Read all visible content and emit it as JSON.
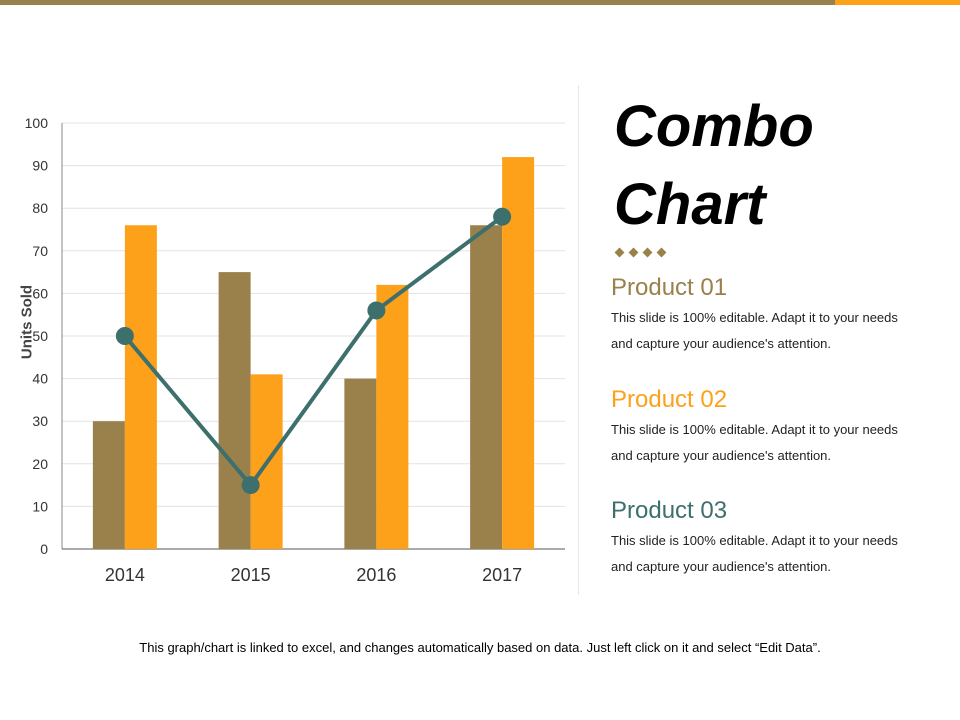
{
  "colors": {
    "product01": "#9a804b",
    "product02": "#fda01a",
    "product03": "#3d706c",
    "topbar": "#9a804b",
    "topbar_accent": "#fda01a"
  },
  "title_lines": [
    "Combo",
    "Chart"
  ],
  "products": [
    {
      "name": "Product 01",
      "text_1": "This slide is 100% editable. Adapt it to your needs",
      "text_2": "and capture your audience's attention."
    },
    {
      "name": "Product 02",
      "text_1": "This slide is 100% editable. Adapt it to your needs",
      "text_2": "and capture your audience's attention."
    },
    {
      "name": "Product 03",
      "text_1": "This slide is 100% editable. Adapt it to your needs",
      "text_2": "and capture your audience's attention."
    }
  ],
  "footer": "This graph/chart is linked to excel, and changes automatically based on data. Just left click on it and select “Edit Data”.",
  "chart_data": {
    "type": "bar",
    "combo": true,
    "categories": [
      "2014",
      "2015",
      "2016",
      "2017"
    ],
    "ylabel": "Units Sold",
    "ylim": [
      0,
      100
    ],
    "yticks": [
      0,
      10,
      20,
      30,
      40,
      50,
      60,
      70,
      80,
      90,
      100
    ],
    "grid": true,
    "series": [
      {
        "values": [
          30,
          65,
          40,
          76
        ],
        "kind": "bar"
      },
      {
        "values": [
          76,
          41,
          62,
          92
        ],
        "kind": "bar"
      },
      {
        "values": [
          50,
          15,
          56,
          78
        ],
        "kind": "line"
      }
    ]
  }
}
